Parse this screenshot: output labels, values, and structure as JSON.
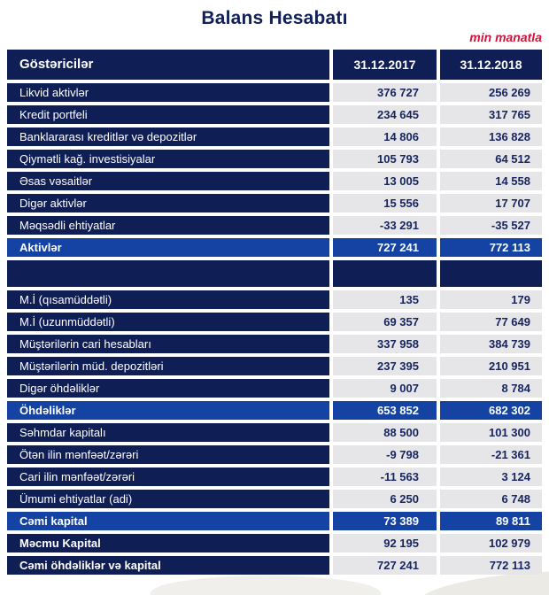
{
  "title": "Balans Hesabatı",
  "unit_note": "min manatla",
  "colors": {
    "navy": "#101e56",
    "royal_blue": "#1543a3",
    "cell_gray": "#e6e6e8",
    "number_text": "#16255f",
    "title_text": "#12205a",
    "accent_red": "#d2123a"
  },
  "table": {
    "headers": {
      "label": "Göstəricilər",
      "col2017": "31.12.2017",
      "col2018": "31.12.2018"
    },
    "rows": [
      {
        "type": "data",
        "label": "Likvid aktivlər",
        "v2017": "376 727",
        "v2018": "256 269"
      },
      {
        "type": "data",
        "label": "Kredit portfeli",
        "v2017": "234 645",
        "v2018": "317 765"
      },
      {
        "type": "data",
        "label": "Banklararası kreditlər və depozitlər",
        "v2017": "14 806",
        "v2018": "136 828"
      },
      {
        "type": "data",
        "label": "Qiymətli kağ. investisiyalar",
        "v2017": "105 793",
        "v2018": "64 512"
      },
      {
        "type": "data",
        "label": "Əsas vəsaitlər",
        "v2017": "13 005",
        "v2018": "14 558"
      },
      {
        "type": "data",
        "label": "Digər aktivlər",
        "v2017": "15 556",
        "v2018": "17 707"
      },
      {
        "type": "data",
        "label": "Məqsədli ehtiyatlar",
        "v2017": "-33 291",
        "v2018": "-35 527"
      },
      {
        "type": "total",
        "label": "Aktivlər",
        "v2017": "727 241",
        "v2018": "772 113"
      },
      {
        "type": "spacer",
        "label": "",
        "v2017": "",
        "v2018": ""
      },
      {
        "type": "data",
        "label": "M.İ (qısamüddətli)",
        "v2017": "135",
        "v2018": "179"
      },
      {
        "type": "data",
        "label": "M.İ (uzunmüddətli)",
        "v2017": "69 357",
        "v2018": "77 649"
      },
      {
        "type": "data",
        "label": "Müştərilərin cari hesabları",
        "v2017": "337 958",
        "v2018": "384 739"
      },
      {
        "type": "data",
        "label": "Müştərilərin müd. depozitləri",
        "v2017": "237 395",
        "v2018": "210 951"
      },
      {
        "type": "data",
        "label": "Digər öhdəliklər",
        "v2017": "9 007",
        "v2018": "8 784"
      },
      {
        "type": "total",
        "label": "Öhdəliklər",
        "v2017": "653 852",
        "v2018": "682 302"
      },
      {
        "type": "data",
        "label": "Səhmdar kapitalı",
        "v2017": "88 500",
        "v2018": "101 300"
      },
      {
        "type": "data",
        "label": "Ötən ilin mənfəət/zərəri",
        "v2017": "-9 798",
        "v2018": "-21 361"
      },
      {
        "type": "data",
        "label": "Cari ilin mənfəət/zərəri",
        "v2017": "-11 563",
        "v2018": "3 124"
      },
      {
        "type": "data",
        "label": "Ümumi ehtiyatlar (adi)",
        "v2017": "6 250",
        "v2018": "6 748"
      },
      {
        "type": "total",
        "label": "Cəmi kapital",
        "v2017": "73 389",
        "v2018": "89 811"
      },
      {
        "type": "bold",
        "label": "Məcmu Kapital",
        "v2017": "92 195",
        "v2018": "102 979"
      },
      {
        "type": "bold",
        "label": "Cəmi öhdəliklər və kapital",
        "v2017": "727 241",
        "v2018": "772 113"
      }
    ]
  }
}
